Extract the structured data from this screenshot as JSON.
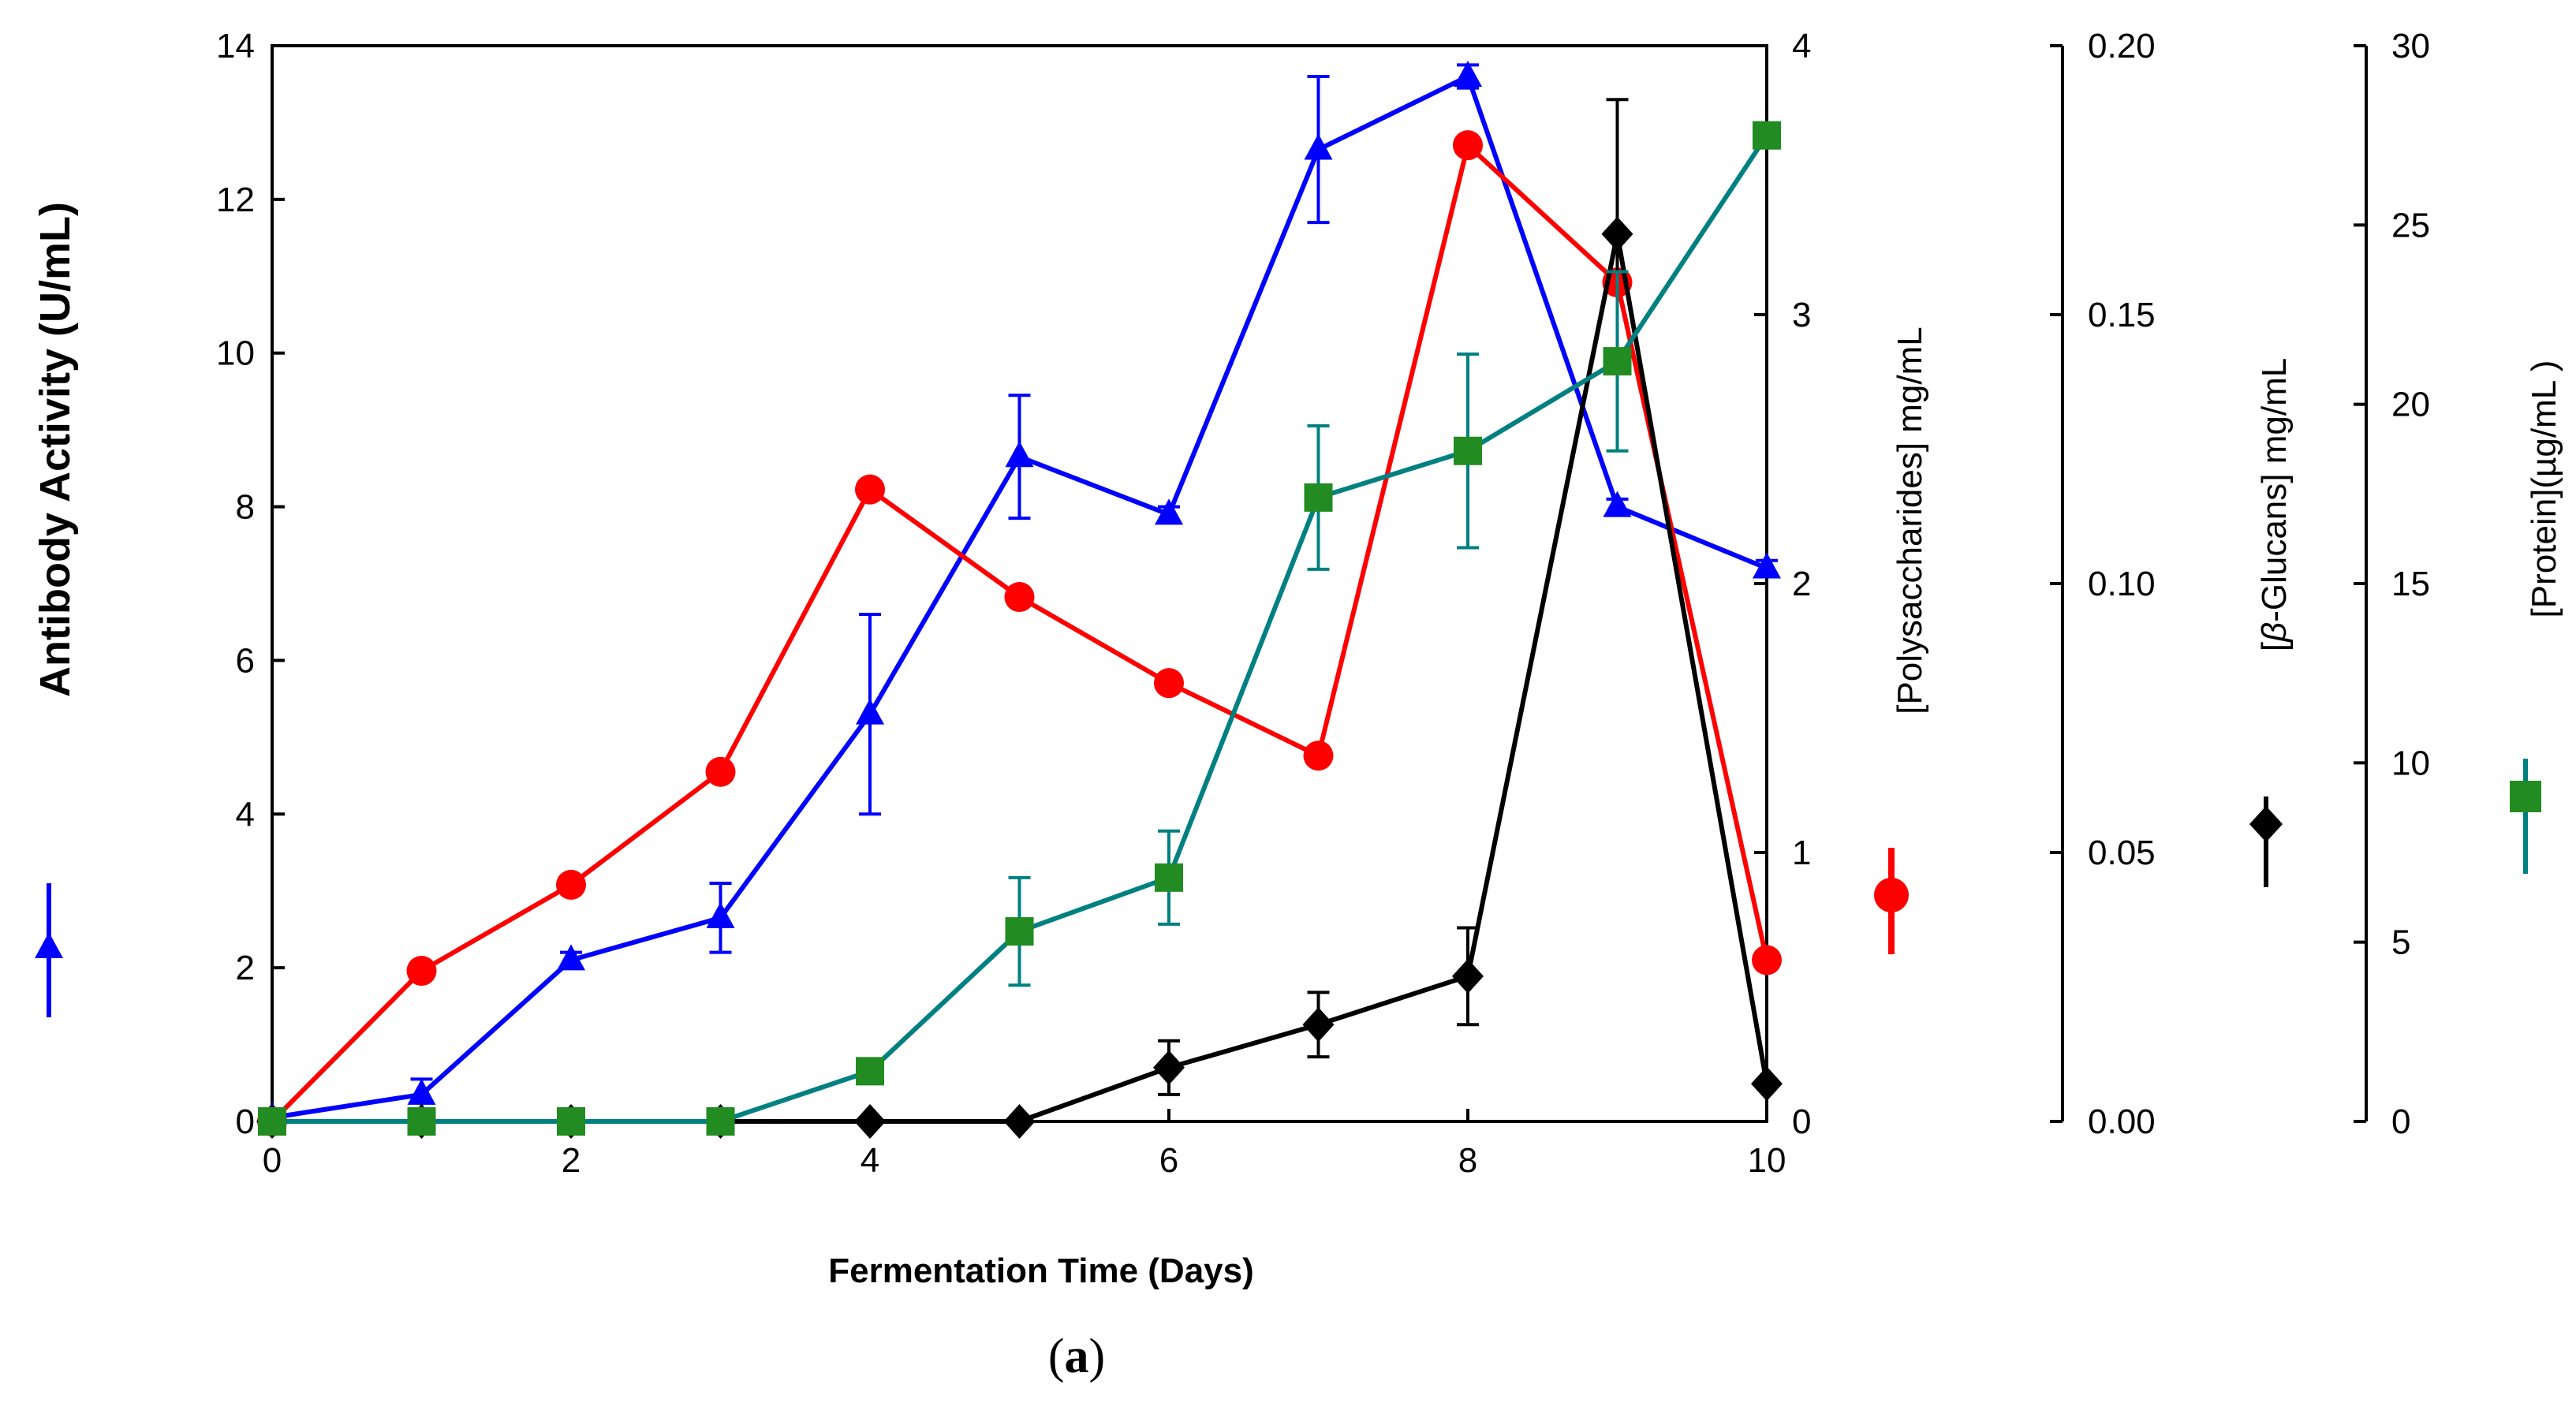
{
  "chart_data": {
    "type": "line",
    "caption_open": "(",
    "caption_letter": "a",
    "caption_close": ")",
    "xlabel": "Fermentation Time (Days)",
    "x": [
      0,
      1,
      2,
      3,
      4,
      5,
      6,
      7,
      8,
      9,
      10
    ],
    "xlim": [
      0,
      10
    ],
    "xticks": [
      0,
      2,
      4,
      6,
      8,
      10
    ],
    "grid": false,
    "axes": {
      "antibody": {
        "label": "Antibody Activity (U/mL)",
        "ylim": [
          0,
          14
        ],
        "ticks": [
          "0",
          "2",
          "4",
          "6",
          "8",
          "10",
          "12",
          "14"
        ]
      },
      "polysaccharides": {
        "label": "[Polysaccharides] mg/mL",
        "ylim": [
          0,
          4
        ],
        "ticks": [
          "0",
          "1",
          "2",
          "3",
          "4"
        ]
      },
      "glucans": {
        "label_prefix": "[",
        "label_greek": "β",
        "label_rest": "-Glucans] mg/mL",
        "ylim": [
          0,
          0.2
        ],
        "ticks": [
          "0.00",
          "0.05",
          "0.10",
          "0.15",
          "0.20"
        ]
      },
      "protein": {
        "label": "[Protein](µg/mL )",
        "ylim": [
          0,
          30
        ],
        "ticks": [
          "0",
          "5",
          "10",
          "15",
          "20",
          "25",
          "30"
        ]
      }
    },
    "series": [
      {
        "name": "Antibody Activity",
        "axis": "antibody",
        "color": "#0000ff",
        "marker": "triangle",
        "values": [
          0.05,
          0.35,
          2.1,
          2.65,
          5.3,
          8.65,
          7.9,
          12.65,
          13.6,
          8.0,
          7.2
        ],
        "errors": [
          0,
          0.2,
          0.1,
          0.45,
          1.3,
          0.8,
          0.1,
          0.95,
          0.15,
          0.1,
          0.1
        ]
      },
      {
        "name": "[Polysaccharides] mg/mL",
        "axis": "polysaccharides",
        "color": "#ff0000",
        "marker": "circle",
        "values": [
          0.0,
          0.56,
          0.88,
          1.3,
          2.35,
          1.95,
          1.63,
          1.36,
          3.63,
          3.12,
          0.6
        ],
        "errors": [
          0,
          0,
          0,
          0,
          0,
          0,
          0,
          0,
          0,
          0,
          0
        ]
      },
      {
        "name": "[β-Glucans] mg/mL",
        "axis": "glucans",
        "color": "#000000",
        "marker": "diamond",
        "values": [
          0.0,
          0.0,
          0.0,
          0.0,
          0.0,
          0.0,
          0.01,
          0.018,
          0.027,
          0.165,
          0.007
        ],
        "errors": [
          0,
          0,
          0,
          0,
          0,
          0,
          0.005,
          0.006,
          0.009,
          0.025,
          0
        ]
      },
      {
        "name": "[Protein](µg/mL )",
        "axis": "protein",
        "color": "#008080",
        "marker_color": "#228b22",
        "marker": "square",
        "values": [
          0.0,
          0.0,
          0.0,
          0.0,
          1.4,
          5.3,
          6.8,
          17.4,
          18.7,
          21.2,
          27.5
        ],
        "errors": [
          0,
          0,
          0,
          0,
          0,
          1.5,
          1.3,
          2.0,
          2.7,
          2.5,
          0
        ]
      }
    ]
  }
}
